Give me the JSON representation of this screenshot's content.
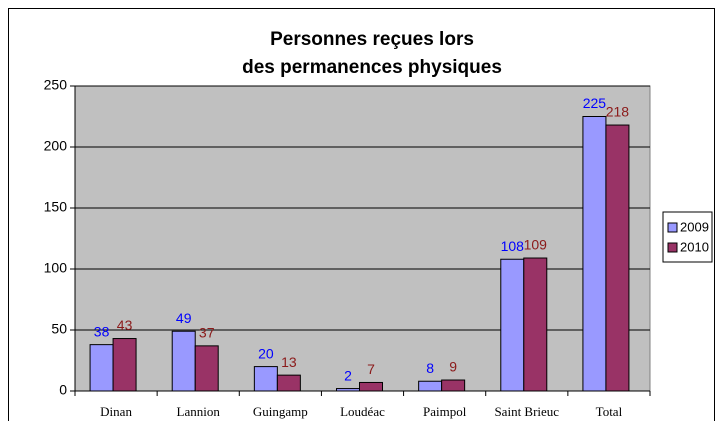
{
  "chart_data": {
    "type": "bar",
    "title": [
      "Personnes reçues lors",
      "des permanences physiques"
    ],
    "categories": [
      "Dinan",
      "Lannion",
      "Guingamp",
      "Loudéac",
      "Paimpol",
      "Saint Brieuc",
      "Total"
    ],
    "series": [
      {
        "name": "2009",
        "color": "#9999ff",
        "label_color": "#0000ff",
        "values": [
          38,
          49,
          20,
          2,
          8,
          108,
          225
        ]
      },
      {
        "name": "2010",
        "color": "#993366",
        "label_color": "#8b1a1a",
        "values": [
          43,
          37,
          13,
          7,
          9,
          109,
          218
        ]
      }
    ],
    "ylim": [
      0,
      250
    ],
    "yticks": [
      0,
      50,
      100,
      150,
      200,
      250
    ],
    "grid": true,
    "legend": "right",
    "plot_background": "#c0c0c0"
  }
}
